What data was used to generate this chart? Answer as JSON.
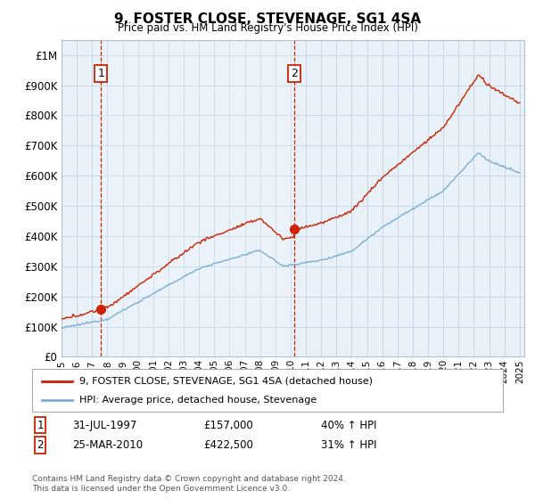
{
  "title": "9, FOSTER CLOSE, STEVENAGE, SG1 4SA",
  "subtitle": "Price paid vs. HM Land Registry's House Price Index (HPI)",
  "ylim": [
    0,
    1050000
  ],
  "yticks": [
    0,
    100000,
    200000,
    300000,
    400000,
    500000,
    600000,
    700000,
    800000,
    900000,
    1000000
  ],
  "ytick_labels": [
    "£0",
    "£100K",
    "£200K",
    "£300K",
    "£400K",
    "£500K",
    "£600K",
    "£700K",
    "£800K",
    "£900K",
    "£1M"
  ],
  "hpi_color": "#7bafd4",
  "price_color": "#cc2200",
  "marker_color": "#cc2200",
  "bg_color": "#e8f0f8",
  "grid_color": "#c8d8e8",
  "annotation1_date": 1997.58,
  "annotation1_price": 157000,
  "annotation2_date": 2010.23,
  "annotation2_price": 422500,
  "legend_label1": "9, FOSTER CLOSE, STEVENAGE, SG1 4SA (detached house)",
  "legend_label2": "HPI: Average price, detached house, Stevenage",
  "note1_date": "31-JUL-1997",
  "note1_price": "£157,000",
  "note1_hpi": "40% ↑ HPI",
  "note2_date": "25-MAR-2010",
  "note2_price": "£422,500",
  "note2_hpi": "31% ↑ HPI",
  "footer": "Contains HM Land Registry data © Crown copyright and database right 2024.\nThis data is licensed under the Open Government Licence v3.0."
}
